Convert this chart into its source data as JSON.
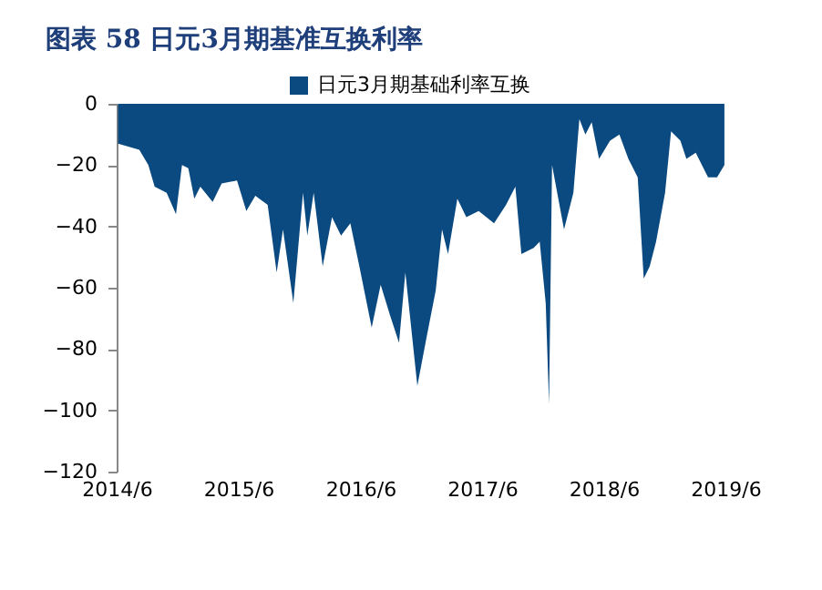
{
  "chart_data": {
    "type": "area",
    "title": "图表 58   日元3月期基准互换利率",
    "legend": "top",
    "grid": false,
    "ylim": [
      -120,
      0
    ],
    "yticks": [
      -120,
      -100,
      -80,
      -60,
      -40,
      -20,
      0
    ],
    "xlim": [
      "2014-06-01",
      "2019-06-01"
    ],
    "xticks": [
      {
        "value": "2014-06-01",
        "label": "2014/6"
      },
      {
        "value": "2015-06-01",
        "label": "2015/6"
      },
      {
        "value": "2016-06-01",
        "label": "2016/6"
      },
      {
        "value": "2017-06-01",
        "label": "2017/6"
      },
      {
        "value": "2018-06-01",
        "label": "2018/6"
      },
      {
        "value": "2019-06-01",
        "label": "2019/6"
      }
    ],
    "x": [
      "2014-06-05",
      "2014-08-08",
      "2014-09-04",
      "2014-09-23",
      "2014-10-29",
      "2014-11-26",
      "2014-12-14",
      "2015-01-02",
      "2015-01-20",
      "2015-02-07",
      "2015-03-16",
      "2015-04-12",
      "2015-05-28",
      "2015-06-25",
      "2015-07-22",
      "2015-08-28",
      "2015-09-24",
      "2015-10-13",
      "2015-11-13",
      "2015-12-12",
      "2015-12-25",
      "2016-01-13",
      "2016-02-09",
      "2016-03-08",
      "2016-04-04",
      "2016-05-02",
      "2016-05-29",
      "2016-07-05",
      "2016-08-01",
      "2016-08-29",
      "2016-09-25",
      "2016-10-14",
      "2016-11-19",
      "2016-12-17",
      "2017-01-13",
      "2017-02-01",
      "2017-02-19",
      "2017-03-19",
      "2017-04-15",
      "2017-05-22",
      "2017-07-07",
      "2017-08-12",
      "2017-09-09",
      "2017-09-27",
      "2017-11-03",
      "2017-11-21",
      "2017-12-09",
      "2017-12-19",
      "2017-12-28",
      "2018-02-02",
      "2018-03-02",
      "2018-03-20",
      "2018-04-07",
      "2018-04-26",
      "2018-05-18",
      "2018-06-20",
      "2018-07-18",
      "2018-08-14",
      "2018-09-11",
      "2018-09-29",
      "2018-10-17",
      "2018-11-05",
      "2018-12-02",
      "2018-12-20",
      "2019-01-17",
      "2019-02-04",
      "2019-03-04",
      "2019-04-10",
      "2019-05-07",
      "2019-05-29"
    ],
    "series": [
      {
        "name": "日元3月期基础利率互换",
        "color": "#0b4a80",
        "values": [
          -13,
          -15,
          -20,
          -27,
          -29,
          -36,
          -20,
          -21,
          -31,
          -27,
          -32,
          -26,
          -25,
          -35,
          -30,
          -33,
          -55,
          -41,
          -65,
          -29,
          -43,
          -29,
          -53,
          -37,
          -43,
          -39,
          -53,
          -73,
          -59,
          -69,
          -78,
          -55,
          -92,
          -76,
          -61,
          -41,
          -49,
          -31,
          -37,
          -35,
          -39,
          -33,
          -27,
          -49,
          -47,
          -45,
          -65,
          -98,
          -20,
          -41,
          -29,
          -5,
          -10,
          -6,
          -18,
          -12,
          -10,
          -18,
          -24,
          -57,
          -53,
          -45,
          -29,
          -9,
          -12,
          -18,
          -16,
          -24,
          -24,
          -20
        ]
      }
    ]
  }
}
